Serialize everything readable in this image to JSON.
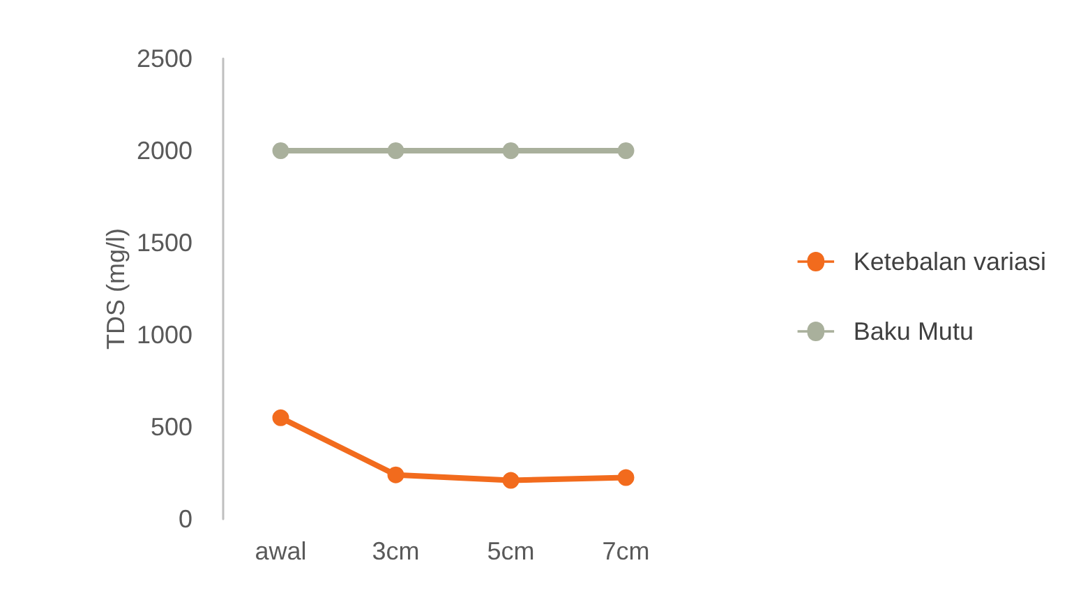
{
  "chart_data": {
    "type": "line",
    "ylabel": "TDS (mg/l)",
    "categories": [
      "awal",
      "3cm",
      "5cm",
      "7cm"
    ],
    "series": [
      {
        "name": "Ketebalan variasi",
        "color": "#f26b1d",
        "values": [
          550,
          240,
          210,
          225
        ]
      },
      {
        "name": "Baku Mutu",
        "color": "#a9b09c",
        "values": [
          2000,
          2000,
          2000,
          2000
        ]
      }
    ],
    "ylim": [
      0,
      2500
    ],
    "yticks": [
      0,
      500,
      1000,
      1500,
      2000,
      2500
    ],
    "grid": false,
    "legend": "right",
    "marker": "circle",
    "line_style": "solid"
  }
}
